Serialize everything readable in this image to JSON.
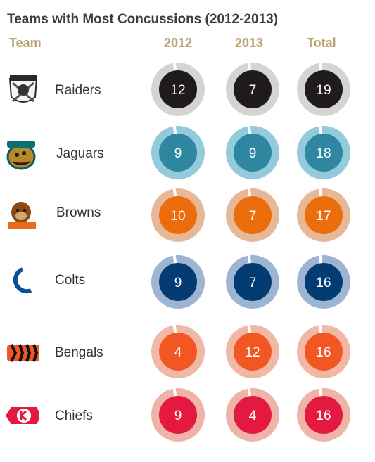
{
  "chart_data": {
    "type": "table",
    "title": "Teams with Most Concussions (2012-2013)",
    "columns": [
      "Team",
      "2012",
      "2013",
      "Total"
    ],
    "rows": [
      {
        "team": "Raiders",
        "logo": "raiders-logo",
        "v2012": 12,
        "v2013": 7,
        "total": 19,
        "inner_color": "#1f1b1a",
        "ring_color": "#d4d4d4"
      },
      {
        "team": "Jaguars",
        "logo": "jaguars-logo",
        "v2012": 9,
        "v2013": 9,
        "total": 18,
        "inner_color": "#2e86a0",
        "ring_color": "#93cbdd"
      },
      {
        "team": "Browns",
        "logo": "browns-logo",
        "v2012": 10,
        "v2013": 7,
        "total": 17,
        "inner_color": "#eb6d0b",
        "ring_color": "#e6b896"
      },
      {
        "team": "Colts",
        "logo": "colts-logo",
        "v2012": 9,
        "v2013": 7,
        "total": 16,
        "inner_color": "#033c73",
        "ring_color": "#9db4d2"
      },
      {
        "team": "Bengals",
        "logo": "bengals-logo",
        "v2012": 4,
        "v2013": 12,
        "total": 16,
        "inner_color": "#f25623",
        "ring_color": "#f1b8a6"
      },
      {
        "team": "Chiefs",
        "logo": "chiefs-logo",
        "v2012": 9,
        "v2013": 4,
        "total": 16,
        "inner_color": "#e5193f",
        "ring_color": "#f0b3a8"
      }
    ]
  }
}
